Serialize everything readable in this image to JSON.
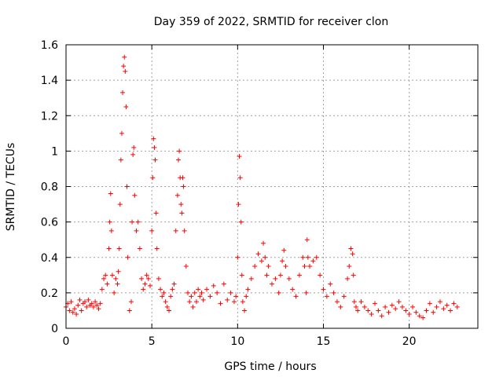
{
  "chart_data": {
    "type": "scatter",
    "title": "Day 359 of 2022, SRMTID for receiver clon",
    "xlabel": "GPS time / hours",
    "ylabel": "SRMTID / TECUs",
    "xlim": [
      0,
      24
    ],
    "ylim": [
      0,
      1.6
    ],
    "xticks": [
      0,
      5,
      10,
      15,
      20
    ],
    "yticks": [
      0,
      0.2,
      0.4,
      0.6,
      0.8,
      1,
      1.2,
      1.4,
      1.6
    ],
    "xtick_labels": [
      "0",
      "5",
      "10",
      "15",
      "20"
    ],
    "ytick_labels": [
      "0",
      "0.2",
      "0.4",
      "0.6",
      "0.8",
      "1",
      "1.2",
      "1.4",
      "1.6"
    ],
    "grid": true,
    "marker": "+",
    "color": "#ff0000",
    "series": [
      {
        "name": "SRMTID",
        "x": [
          0.0,
          0.1,
          0.2,
          0.3,
          0.4,
          0.5,
          0.6,
          0.7,
          0.8,
          0.9,
          1.0,
          1.1,
          1.2,
          1.3,
          1.4,
          1.5,
          1.6,
          1.7,
          1.8,
          1.9,
          2.0,
          2.1,
          2.2,
          2.3,
          2.4,
          2.5,
          2.55,
          2.6,
          2.65,
          2.7,
          2.8,
          2.9,
          3.0,
          3.05,
          3.1,
          3.15,
          3.2,
          3.25,
          3.3,
          3.35,
          3.4,
          3.45,
          3.5,
          3.55,
          3.6,
          3.7,
          3.8,
          3.85,
          3.9,
          3.95,
          4.0,
          4.1,
          4.2,
          4.3,
          4.4,
          4.5,
          4.6,
          4.7,
          4.8,
          4.9,
          5.0,
          5.05,
          5.1,
          5.15,
          5.2,
          5.25,
          5.3,
          5.4,
          5.5,
          5.6,
          5.7,
          5.8,
          5.9,
          6.0,
          6.1,
          6.2,
          6.3,
          6.4,
          6.5,
          6.55,
          6.6,
          6.65,
          6.7,
          6.75,
          6.8,
          6.85,
          6.9,
          7.0,
          7.1,
          7.2,
          7.3,
          7.4,
          7.5,
          7.6,
          7.7,
          7.8,
          7.9,
          8.0,
          8.2,
          8.4,
          8.6,
          8.8,
          9.0,
          9.2,
          9.4,
          9.6,
          9.8,
          9.9,
          10.0,
          10.05,
          10.1,
          10.15,
          10.2,
          10.25,
          10.3,
          10.4,
          10.5,
          10.6,
          10.8,
          11.0,
          11.2,
          11.4,
          11.5,
          11.6,
          11.7,
          11.8,
          12.0,
          12.2,
          12.4,
          12.5,
          12.6,
          12.7,
          12.8,
          13.0,
          13.2,
          13.4,
          13.6,
          13.8,
          13.9,
          14.0,
          14.05,
          14.1,
          14.2,
          14.4,
          14.6,
          14.8,
          15.0,
          15.2,
          15.4,
          15.6,
          15.8,
          16.0,
          16.2,
          16.4,
          16.5,
          16.6,
          16.7,
          16.75,
          16.8,
          16.9,
          17.0,
          17.2,
          17.4,
          17.6,
          17.8,
          18.0,
          18.2,
          18.4,
          18.6,
          18.8,
          19.0,
          19.2,
          19.4,
          19.6,
          19.8,
          20.0,
          20.2,
          20.4,
          20.6,
          20.8,
          21.0,
          21.2,
          21.4,
          21.6,
          21.8,
          22.0,
          22.2,
          22.4,
          22.6,
          22.8
        ],
        "y": [
          0.12,
          0.14,
          0.1,
          0.15,
          0.09,
          0.11,
          0.08,
          0.13,
          0.16,
          0.1,
          0.14,
          0.15,
          0.12,
          0.16,
          0.13,
          0.14,
          0.12,
          0.15,
          0.13,
          0.11,
          0.14,
          0.22,
          0.28,
          0.3,
          0.25,
          0.45,
          0.6,
          0.76,
          0.55,
          0.3,
          0.2,
          0.28,
          0.25,
          0.32,
          0.45,
          0.7,
          0.95,
          1.1,
          1.33,
          1.48,
          1.53,
          1.45,
          1.25,
          0.8,
          0.4,
          0.1,
          0.15,
          0.6,
          0.98,
          1.02,
          0.75,
          0.55,
          0.6,
          0.45,
          0.28,
          0.22,
          0.25,
          0.3,
          0.28,
          0.24,
          0.55,
          0.85,
          1.07,
          1.02,
          0.95,
          0.65,
          0.45,
          0.28,
          0.22,
          0.18,
          0.2,
          0.15,
          0.12,
          0.1,
          0.18,
          0.22,
          0.25,
          0.55,
          0.75,
          0.95,
          1.0,
          0.85,
          0.7,
          0.65,
          0.85,
          0.8,
          0.55,
          0.35,
          0.2,
          0.15,
          0.18,
          0.12,
          0.2,
          0.15,
          0.22,
          0.18,
          0.2,
          0.16,
          0.22,
          0.18,
          0.24,
          0.2,
          0.14,
          0.25,
          0.16,
          0.2,
          0.15,
          0.18,
          0.4,
          0.7,
          0.97,
          0.85,
          0.6,
          0.3,
          0.15,
          0.1,
          0.18,
          0.22,
          0.28,
          0.35,
          0.42,
          0.38,
          0.48,
          0.4,
          0.3,
          0.35,
          0.25,
          0.28,
          0.2,
          0.3,
          0.38,
          0.44,
          0.35,
          0.28,
          0.22,
          0.18,
          0.3,
          0.4,
          0.35,
          0.2,
          0.5,
          0.4,
          0.35,
          0.38,
          0.4,
          0.3,
          0.22,
          0.18,
          0.25,
          0.2,
          0.15,
          0.12,
          0.18,
          0.28,
          0.35,
          0.45,
          0.42,
          0.3,
          0.15,
          0.12,
          0.1,
          0.15,
          0.12,
          0.1,
          0.08,
          0.14,
          0.1,
          0.07,
          0.12,
          0.09,
          0.13,
          0.11,
          0.15,
          0.12,
          0.1,
          0.08,
          0.12,
          0.09,
          0.07,
          0.06,
          0.1,
          0.14,
          0.09,
          0.12,
          0.15,
          0.11,
          0.13,
          0.1,
          0.14,
          0.12
        ]
      }
    ]
  }
}
